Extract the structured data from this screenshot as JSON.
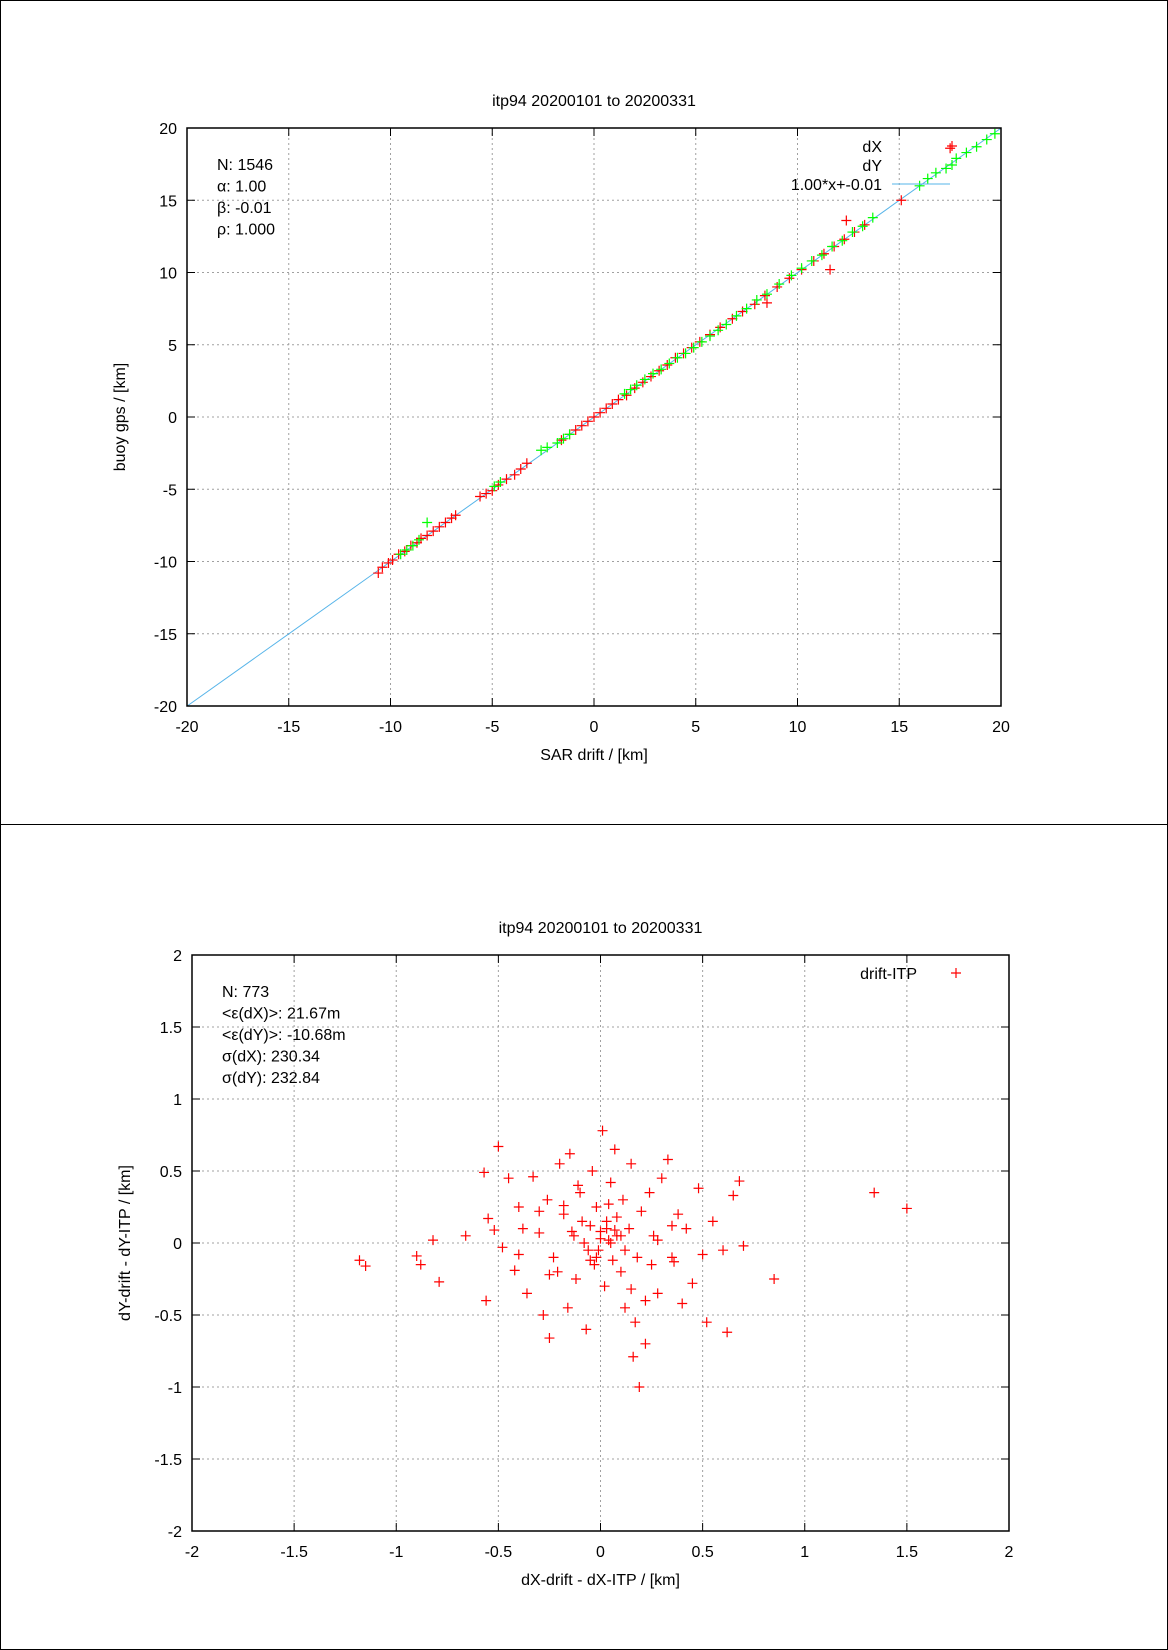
{
  "chart_data": [
    {
      "type": "scatter",
      "title": "itp94 20200101 to 20200331",
      "xlabel": "SAR drift / [km]",
      "ylabel": "buoy gps / [km]",
      "xlim": [
        -20,
        20
      ],
      "ylim": [
        -20,
        20
      ],
      "xticks": [
        -20,
        -15,
        -10,
        -5,
        0,
        5,
        10,
        15,
        20
      ],
      "yticks": [
        -20,
        -15,
        -10,
        -5,
        0,
        5,
        10,
        15,
        20
      ],
      "grid": true,
      "legend_position": "top-right",
      "stats": [
        "N: 1546",
        "α: 1.00",
        "β: -0.01",
        "ρ: 1.000"
      ],
      "fit": {
        "label": "1.00*x+-0.01",
        "slope": 1.0,
        "intercept": -0.01,
        "color": "#56b4e9"
      },
      "series": [
        {
          "name": "dX",
          "color": "#ff0000",
          "marker": "+",
          "x": [
            -10.6,
            -10.4,
            -10.1,
            -9.9,
            -9.6,
            -9.3,
            -9.0,
            -8.7,
            -8.5,
            -8.2,
            -7.9,
            -7.6,
            -7.3,
            -7.0,
            -6.8,
            -5.6,
            -5.3,
            -5.0,
            -4.7,
            -4.3,
            -3.9,
            -3.6,
            -3.3,
            -1.6,
            -1.2,
            -0.9,
            -0.6,
            -0.3,
            0.0,
            0.3,
            0.6,
            0.9,
            1.2,
            1.6,
            2.0,
            2.4,
            2.8,
            3.2,
            3.6,
            4.0,
            4.4,
            4.8,
            5.2,
            5.7,
            6.2,
            6.8,
            7.3,
            7.9,
            8.4,
            9.0,
            9.6,
            10.2,
            10.8,
            11.3,
            11.8,
            12.3,
            12.8,
            13.3,
            15.1,
            17.5,
            8.5,
            11.6,
            12.4
          ],
          "y": [
            -10.8,
            -10.4,
            -10.1,
            -9.9,
            -9.5,
            -9.3,
            -8.9,
            -8.7,
            -8.4,
            -8.2,
            -7.9,
            -7.6,
            -7.3,
            -7.0,
            -6.8,
            -5.5,
            -5.3,
            -5.1,
            -4.7,
            -4.3,
            -4.0,
            -3.6,
            -3.2,
            -1.6,
            -1.2,
            -0.9,
            -0.6,
            -0.3,
            0.0,
            0.3,
            0.6,
            0.9,
            1.2,
            1.5,
            2.0,
            2.4,
            2.8,
            3.2,
            3.6,
            4.1,
            4.4,
            4.8,
            5.2,
            5.7,
            6.2,
            6.8,
            7.3,
            7.8,
            8.4,
            9.0,
            9.6,
            10.2,
            10.8,
            11.3,
            11.8,
            12.3,
            12.8,
            13.3,
            15.0,
            18.6,
            7.9,
            10.2,
            13.6
          ]
        },
        {
          "name": "dY",
          "color": "#00ff00",
          "marker": "+",
          "x": [
            -9.5,
            -9.2,
            -8.9,
            -8.6,
            -8.2,
            -4.9,
            -4.6,
            -2.6,
            -2.3,
            -1.8,
            -1.5,
            -1.2,
            1.5,
            1.8,
            2.1,
            2.5,
            2.9,
            3.3,
            3.7,
            4.1,
            4.5,
            4.9,
            5.3,
            5.7,
            6.1,
            6.5,
            7.0,
            7.5,
            8.0,
            8.5,
            9.1,
            9.7,
            10.2,
            10.7,
            11.2,
            11.7,
            12.2,
            12.7,
            13.2,
            13.7,
            16.0,
            16.4,
            16.8,
            17.3,
            17.8,
            18.3,
            18.8,
            19.3,
            19.7
          ],
          "y": [
            -9.5,
            -9.2,
            -8.9,
            -8.5,
            -7.3,
            -4.8,
            -4.5,
            -2.3,
            -2.1,
            -1.8,
            -1.5,
            -1.2,
            1.6,
            1.9,
            2.2,
            2.6,
            3.0,
            3.3,
            3.7,
            4.1,
            4.4,
            4.8,
            5.2,
            5.6,
            6.0,
            6.4,
            7.0,
            7.5,
            8.1,
            8.5,
            9.2,
            9.8,
            10.3,
            10.8,
            11.2,
            11.8,
            12.2,
            12.8,
            13.2,
            13.8,
            16.0,
            16.5,
            16.9,
            17.2,
            17.9,
            18.3,
            18.7,
            19.2,
            19.6
          ]
        }
      ]
    },
    {
      "type": "scatter",
      "title": "itp94 20200101 to 20200331",
      "xlabel": "dX-drift - dX-ITP / [km]",
      "ylabel": "dY-drift - dY-ITP / [km]",
      "xlim": [
        -2,
        2
      ],
      "ylim": [
        -2,
        2
      ],
      "xticks": [
        -2,
        -1.5,
        -1,
        -0.5,
        0,
        0.5,
        1,
        1.5,
        2
      ],
      "yticks": [
        -2,
        -1.5,
        -1,
        -0.5,
        0,
        0.5,
        1,
        1.5,
        2
      ],
      "grid": true,
      "legend_position": "top-right",
      "stats": [
        "N: 773",
        "<ε(dX)>:  21.67m",
        "<ε(dY)>: -10.68m",
        "σ(dX):  230.34",
        "σ(dY):  232.84"
      ],
      "series": [
        {
          "name": "drift-ITP",
          "color": "#ff0000",
          "marker": "+",
          "x": [
            -1.18,
            -1.15,
            -0.9,
            -0.88,
            -0.82,
            -0.79,
            -0.66,
            -0.57,
            -0.56,
            -0.55,
            -0.52,
            -0.5,
            -0.48,
            -0.45,
            -0.42,
            -0.4,
            -0.38,
            -0.36,
            -0.33,
            -0.3,
            -0.28,
            -0.26,
            -0.25,
            -0.23,
            -0.2,
            -0.18,
            -0.16,
            -0.15,
            -0.13,
            -0.12,
            -0.1,
            -0.08,
            -0.07,
            -0.05,
            -0.04,
            -0.03,
            -0.02,
            -0.01,
            0.0,
            0.01,
            0.02,
            0.03,
            0.04,
            0.05,
            0.06,
            0.07,
            0.08,
            0.1,
            0.11,
            0.12,
            0.14,
            0.15,
            0.17,
            0.18,
            0.2,
            0.22,
            0.24,
            0.26,
            0.28,
            0.3,
            0.33,
            0.35,
            0.38,
            0.4,
            0.42,
            0.45,
            0.48,
            0.5,
            0.52,
            0.55,
            0.6,
            0.62,
            0.65,
            0.68,
            0.7,
            0.85,
            1.34,
            1.5,
            0.19,
            -0.06,
            0.03,
            -0.21,
            0.08,
            0.15,
            -0.14,
            0.25,
            -0.3,
            0.35,
            -0.4,
            0.1,
            -0.02,
            0.05,
            -0.09,
            0.12,
            0.0,
            -0.05,
            0.07,
            0.22,
            -0.18,
            0.28,
            -0.25,
            0.36,
            0.16,
            -0.11,
            0.04
          ],
          "y": [
            -0.12,
            -0.16,
            -0.09,
            -0.15,
            0.02,
            -0.27,
            0.05,
            0.49,
            -0.4,
            0.17,
            0.09,
            0.67,
            -0.03,
            0.45,
            -0.19,
            0.25,
            0.1,
            -0.35,
            0.46,
            0.07,
            -0.5,
            0.3,
            -0.66,
            -0.1,
            0.55,
            0.2,
            -0.45,
            0.62,
            0.05,
            -0.25,
            0.35,
            0.0,
            -0.6,
            0.12,
            0.5,
            -0.15,
            0.25,
            -0.05,
            0.08,
            0.78,
            -0.3,
            0.15,
            0.02,
            0.42,
            -0.12,
            0.65,
            0.05,
            -0.2,
            0.3,
            -0.45,
            0.1,
            0.55,
            -0.55,
            -0.1,
            0.22,
            -0.7,
            0.35,
            0.05,
            -0.35,
            0.45,
            0.58,
            -0.1,
            0.2,
            -0.42,
            0.1,
            -0.28,
            0.38,
            -0.08,
            -0.55,
            0.15,
            -0.05,
            -0.62,
            0.33,
            0.43,
            -0.02,
            -0.25,
            0.35,
            0.24,
            -1.0,
            -0.05,
            0.1,
            -0.2,
            0.18,
            -0.32,
            0.08,
            -0.15,
            0.22,
            0.12,
            -0.08,
            0.05,
            -0.1,
            0.0,
            0.15,
            -0.05,
            0.03,
            -0.12,
            0.09,
            -0.4,
            0.26,
            0.02,
            -0.22,
            -0.13,
            -0.79,
            0.4,
            0.27
          ]
        }
      ]
    }
  ]
}
